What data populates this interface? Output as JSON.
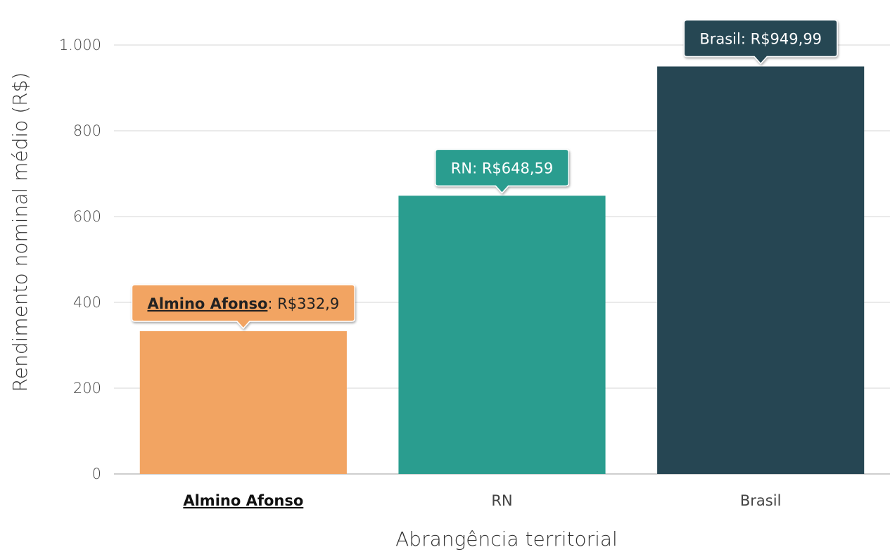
{
  "chart_data": {
    "type": "bar",
    "title": "",
    "xlabel": "Abrangência territorial",
    "ylabel": "Rendimento nominal médio (R$)",
    "ylim": [
      0,
      1000
    ],
    "yticks": [
      0,
      200,
      400,
      600,
      800,
      1000
    ],
    "ytick_labels": [
      "0",
      "200",
      "400",
      "600",
      "800",
      "1.000"
    ],
    "grid": true,
    "categories": [
      "Almino Afonso",
      "RN",
      "Brasil"
    ],
    "values": [
      332.9,
      648.59,
      949.99
    ],
    "colors": [
      "#F2A462",
      "#2A9D8F",
      "#264653"
    ],
    "highlight_category": "Almino Afonso",
    "annotations": [
      {
        "name": "Almino Afonso",
        "value_text": "R$332,9"
      },
      {
        "name": "RN",
        "value_text": "R$648,59"
      },
      {
        "name": "Brasil",
        "value_text": "R$949,99"
      }
    ]
  }
}
